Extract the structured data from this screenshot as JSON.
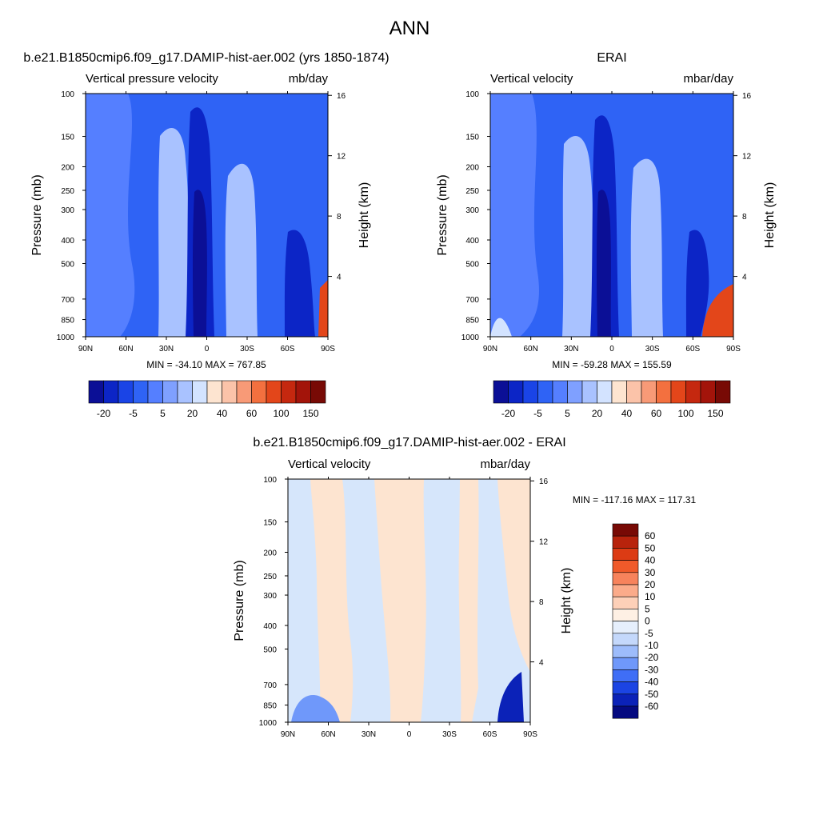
{
  "figure": {
    "title": "ANN"
  },
  "chart_data": [
    {
      "type": "heatmap",
      "title": "b.e21.B1850cmip6.f09_g17.DAMIP-hist-aer.002 (yrs 1850-1874)",
      "left_label": "Vertical pressure velocity",
      "right_label": "mb/day",
      "ylabel": "Pressure (mb)",
      "y2label": "Height (km)",
      "x_ticks": [
        "90N",
        "60N",
        "30N",
        "0",
        "30S",
        "60S",
        "90S"
      ],
      "y_ticks": [
        "100",
        "150",
        "200",
        "250",
        "300",
        "400",
        "500",
        "700",
        "850",
        "1000"
      ],
      "y2_ticks": [
        "4",
        "8",
        "12",
        "16"
      ],
      "ylim": [
        1000,
        100
      ],
      "y_scale": "log",
      "stats": "MIN = -34.10  MAX = 767.85",
      "colorbar": {
        "orientation": "horizontal",
        "levels": [
          "-20",
          "-5",
          "5",
          "20",
          "40",
          "60",
          "100",
          "150"
        ],
        "colors": [
          "#0b0f96",
          "#0c25c6",
          "#1a44e6",
          "#2f63f5",
          "#557fff",
          "#7fa0ff",
          "#a9c2ff",
          "#d3e3ff",
          "#fde4d0",
          "#fbc3a9",
          "#f89a77",
          "#f3703f",
          "#e3461a",
          "#c5280f",
          "#a3140a",
          "#780a05"
        ]
      },
      "field_colors": {
        "base": "#2f63f5",
        "moderate_rise": "#557fff",
        "weak_rise": "#a9c2ff",
        "strong_rise": "#0c25c6",
        "very_strong_rise": "#0b0f96",
        "sink": "#e3461a"
      }
    },
    {
      "type": "heatmap",
      "title": "ERAI",
      "left_label": "Vertical velocity",
      "right_label": "mbar/day",
      "ylabel": "Pressure (mb)",
      "y2label": "Height (km)",
      "x_ticks": [
        "90N",
        "60N",
        "30N",
        "0",
        "30S",
        "60S",
        "90S"
      ],
      "y_ticks": [
        "100",
        "150",
        "200",
        "250",
        "300",
        "400",
        "500",
        "700",
        "850",
        "1000"
      ],
      "y2_ticks": [
        "4",
        "8",
        "12",
        "16"
      ],
      "ylim": [
        1000,
        100
      ],
      "y_scale": "log",
      "stats": "MIN = -59.28  MAX = 155.59",
      "colorbar": {
        "orientation": "horizontal",
        "levels": [
          "-20",
          "-5",
          "5",
          "20",
          "40",
          "60",
          "100",
          "150"
        ],
        "colors": [
          "#0b0f96",
          "#0c25c6",
          "#1a44e6",
          "#2f63f5",
          "#557fff",
          "#7fa0ff",
          "#a9c2ff",
          "#d3e3ff",
          "#fde4d0",
          "#fbc3a9",
          "#f89a77",
          "#f3703f",
          "#e3461a",
          "#c5280f",
          "#a3140a",
          "#780a05"
        ]
      },
      "field_colors": {
        "base": "#2f63f5",
        "moderate_rise": "#557fff",
        "weak_rise": "#a9c2ff",
        "strong_rise": "#0c25c6",
        "very_strong_rise": "#0b0f96",
        "sink": "#e3461a"
      }
    },
    {
      "type": "heatmap",
      "title": "b.e21.B1850cmip6.f09_g17.DAMIP-hist-aer.002 - ERAI",
      "left_label": "Vertical velocity",
      "right_label": "mbar/day",
      "ylabel": "Pressure (mb)",
      "y2label": "Height (km)",
      "x_ticks": [
        "90N",
        "60N",
        "30N",
        "0",
        "30S",
        "60S",
        "90S"
      ],
      "y_ticks": [
        "100",
        "150",
        "200",
        "250",
        "300",
        "400",
        "500",
        "700",
        "850",
        "1000"
      ],
      "y2_ticks": [
        "4",
        "8",
        "12",
        "16"
      ],
      "ylim": [
        1000,
        100
      ],
      "y_scale": "log",
      "stats": "MIN = -117.16  MAX = 117.31",
      "colorbar": {
        "orientation": "vertical",
        "levels": [
          "60",
          "50",
          "40",
          "30",
          "20",
          "10",
          "5",
          "0",
          "-5",
          "-10",
          "-20",
          "-30",
          "-40",
          "-50",
          "-60"
        ],
        "colors": [
          "#780a05",
          "#b8230c",
          "#dc3b14",
          "#f05a2a",
          "#f7835c",
          "#fbab8a",
          "#fdd0b8",
          "#fef0e4",
          "#e6effc",
          "#c4d8fb",
          "#9dbcfb",
          "#6f98fa",
          "#3f6ef6",
          "#1b44e3",
          "#0b22b8",
          "#050a80"
        ]
      },
      "field_colors": {
        "base": "#d6e6fb",
        "positive": "#fde4d0",
        "strong_negative": "#0b22b8"
      }
    }
  ]
}
